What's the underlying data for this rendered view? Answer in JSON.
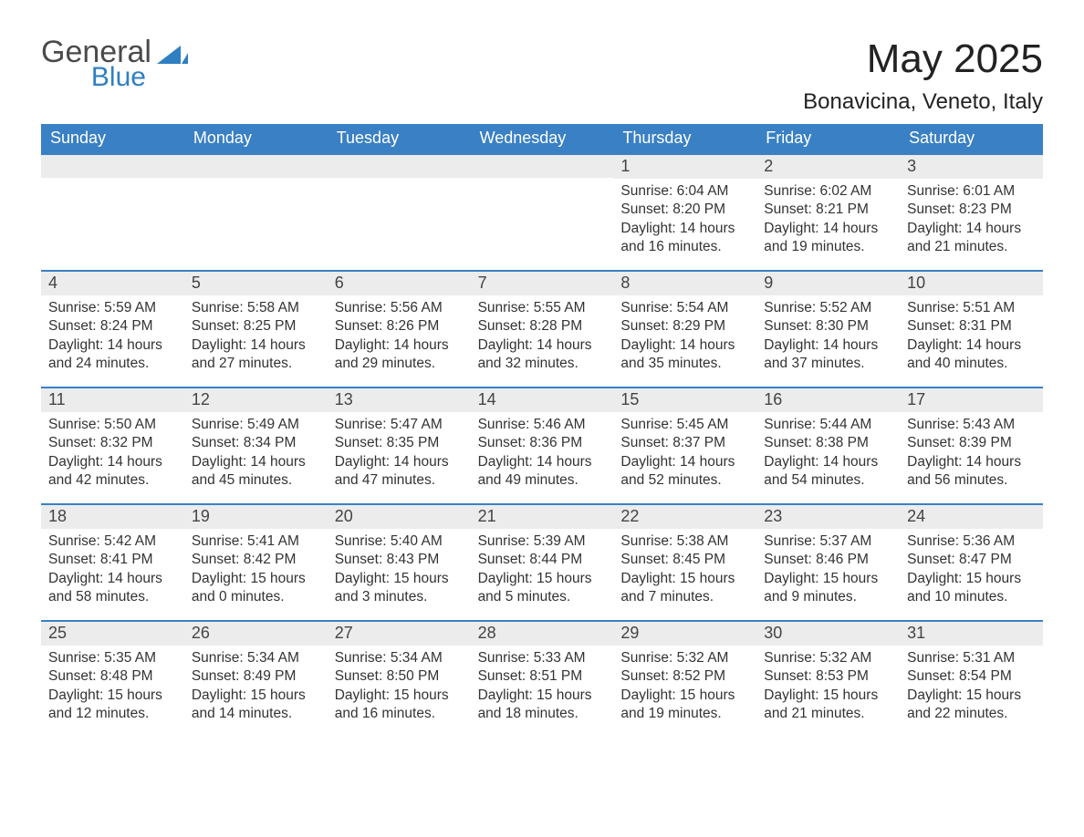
{
  "brand": {
    "general": "General",
    "blue": "Blue"
  },
  "title": "May 2025",
  "location": "Bonavicina, Veneto, Italy",
  "colors": {
    "header_bg": "#3a80c4",
    "header_text": "#ffffff",
    "daynum_bg": "#ececec",
    "border": "#3a80c4",
    "body_text": "#333333",
    "logo_blue": "#2f7fc2"
  },
  "weekdays": [
    "Sunday",
    "Monday",
    "Tuesday",
    "Wednesday",
    "Thursday",
    "Friday",
    "Saturday"
  ],
  "weeks": [
    [
      {
        "day": "",
        "lines": []
      },
      {
        "day": "",
        "lines": []
      },
      {
        "day": "",
        "lines": []
      },
      {
        "day": "",
        "lines": []
      },
      {
        "day": "1",
        "lines": [
          "Sunrise: 6:04 AM",
          "Sunset: 8:20 PM",
          "Daylight: 14 hours",
          "and 16 minutes."
        ]
      },
      {
        "day": "2",
        "lines": [
          "Sunrise: 6:02 AM",
          "Sunset: 8:21 PM",
          "Daylight: 14 hours",
          "and 19 minutes."
        ]
      },
      {
        "day": "3",
        "lines": [
          "Sunrise: 6:01 AM",
          "Sunset: 8:23 PM",
          "Daylight: 14 hours",
          "and 21 minutes."
        ]
      }
    ],
    [
      {
        "day": "4",
        "lines": [
          "Sunrise: 5:59 AM",
          "Sunset: 8:24 PM",
          "Daylight: 14 hours",
          "and 24 minutes."
        ]
      },
      {
        "day": "5",
        "lines": [
          "Sunrise: 5:58 AM",
          "Sunset: 8:25 PM",
          "Daylight: 14 hours",
          "and 27 minutes."
        ]
      },
      {
        "day": "6",
        "lines": [
          "Sunrise: 5:56 AM",
          "Sunset: 8:26 PM",
          "Daylight: 14 hours",
          "and 29 minutes."
        ]
      },
      {
        "day": "7",
        "lines": [
          "Sunrise: 5:55 AM",
          "Sunset: 8:28 PM",
          "Daylight: 14 hours",
          "and 32 minutes."
        ]
      },
      {
        "day": "8",
        "lines": [
          "Sunrise: 5:54 AM",
          "Sunset: 8:29 PM",
          "Daylight: 14 hours",
          "and 35 minutes."
        ]
      },
      {
        "day": "9",
        "lines": [
          "Sunrise: 5:52 AM",
          "Sunset: 8:30 PM",
          "Daylight: 14 hours",
          "and 37 minutes."
        ]
      },
      {
        "day": "10",
        "lines": [
          "Sunrise: 5:51 AM",
          "Sunset: 8:31 PM",
          "Daylight: 14 hours",
          "and 40 minutes."
        ]
      }
    ],
    [
      {
        "day": "11",
        "lines": [
          "Sunrise: 5:50 AM",
          "Sunset: 8:32 PM",
          "Daylight: 14 hours",
          "and 42 minutes."
        ]
      },
      {
        "day": "12",
        "lines": [
          "Sunrise: 5:49 AM",
          "Sunset: 8:34 PM",
          "Daylight: 14 hours",
          "and 45 minutes."
        ]
      },
      {
        "day": "13",
        "lines": [
          "Sunrise: 5:47 AM",
          "Sunset: 8:35 PM",
          "Daylight: 14 hours",
          "and 47 minutes."
        ]
      },
      {
        "day": "14",
        "lines": [
          "Sunrise: 5:46 AM",
          "Sunset: 8:36 PM",
          "Daylight: 14 hours",
          "and 49 minutes."
        ]
      },
      {
        "day": "15",
        "lines": [
          "Sunrise: 5:45 AM",
          "Sunset: 8:37 PM",
          "Daylight: 14 hours",
          "and 52 minutes."
        ]
      },
      {
        "day": "16",
        "lines": [
          "Sunrise: 5:44 AM",
          "Sunset: 8:38 PM",
          "Daylight: 14 hours",
          "and 54 minutes."
        ]
      },
      {
        "day": "17",
        "lines": [
          "Sunrise: 5:43 AM",
          "Sunset: 8:39 PM",
          "Daylight: 14 hours",
          "and 56 minutes."
        ]
      }
    ],
    [
      {
        "day": "18",
        "lines": [
          "Sunrise: 5:42 AM",
          "Sunset: 8:41 PM",
          "Daylight: 14 hours",
          "and 58 minutes."
        ]
      },
      {
        "day": "19",
        "lines": [
          "Sunrise: 5:41 AM",
          "Sunset: 8:42 PM",
          "Daylight: 15 hours",
          "and 0 minutes."
        ]
      },
      {
        "day": "20",
        "lines": [
          "Sunrise: 5:40 AM",
          "Sunset: 8:43 PM",
          "Daylight: 15 hours",
          "and 3 minutes."
        ]
      },
      {
        "day": "21",
        "lines": [
          "Sunrise: 5:39 AM",
          "Sunset: 8:44 PM",
          "Daylight: 15 hours",
          "and 5 minutes."
        ]
      },
      {
        "day": "22",
        "lines": [
          "Sunrise: 5:38 AM",
          "Sunset: 8:45 PM",
          "Daylight: 15 hours",
          "and 7 minutes."
        ]
      },
      {
        "day": "23",
        "lines": [
          "Sunrise: 5:37 AM",
          "Sunset: 8:46 PM",
          "Daylight: 15 hours",
          "and 9 minutes."
        ]
      },
      {
        "day": "24",
        "lines": [
          "Sunrise: 5:36 AM",
          "Sunset: 8:47 PM",
          "Daylight: 15 hours",
          "and 10 minutes."
        ]
      }
    ],
    [
      {
        "day": "25",
        "lines": [
          "Sunrise: 5:35 AM",
          "Sunset: 8:48 PM",
          "Daylight: 15 hours",
          "and 12 minutes."
        ]
      },
      {
        "day": "26",
        "lines": [
          "Sunrise: 5:34 AM",
          "Sunset: 8:49 PM",
          "Daylight: 15 hours",
          "and 14 minutes."
        ]
      },
      {
        "day": "27",
        "lines": [
          "Sunrise: 5:34 AM",
          "Sunset: 8:50 PM",
          "Daylight: 15 hours",
          "and 16 minutes."
        ]
      },
      {
        "day": "28",
        "lines": [
          "Sunrise: 5:33 AM",
          "Sunset: 8:51 PM",
          "Daylight: 15 hours",
          "and 18 minutes."
        ]
      },
      {
        "day": "29",
        "lines": [
          "Sunrise: 5:32 AM",
          "Sunset: 8:52 PM",
          "Daylight: 15 hours",
          "and 19 minutes."
        ]
      },
      {
        "day": "30",
        "lines": [
          "Sunrise: 5:32 AM",
          "Sunset: 8:53 PM",
          "Daylight: 15 hours",
          "and 21 minutes."
        ]
      },
      {
        "day": "31",
        "lines": [
          "Sunrise: 5:31 AM",
          "Sunset: 8:54 PM",
          "Daylight: 15 hours",
          "and 22 minutes."
        ]
      }
    ]
  ]
}
